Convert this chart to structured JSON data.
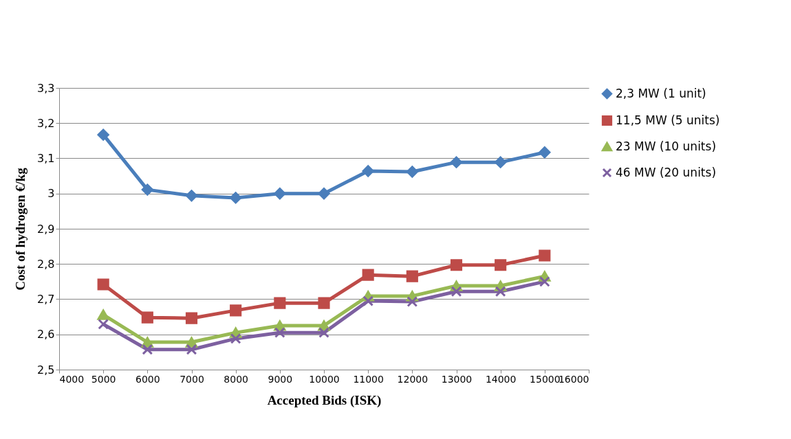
{
  "chart_data": {
    "type": "line",
    "xlabel": "Accepted Bids (ISK)",
    "ylabel": "Cost of hydrogen €/kg",
    "x": [
      5000,
      6000,
      7000,
      8000,
      9000,
      10000,
      11000,
      12000,
      13000,
      14000,
      15000
    ],
    "series": [
      {
        "name": "2,3 MW (1 unit)",
        "color": "#4a7ebb",
        "marker": "diamond",
        "values": [
          3.167,
          3.011,
          2.994,
          2.988,
          3.0,
          3.0,
          3.064,
          3.062,
          3.089,
          3.089,
          3.117
        ]
      },
      {
        "name": "11,5 MW (5 units)",
        "color": "#be4b48",
        "marker": "square",
        "values": [
          2.742,
          2.648,
          2.646,
          2.668,
          2.689,
          2.689,
          2.769,
          2.765,
          2.797,
          2.797,
          2.824
        ]
      },
      {
        "name": "23 MW (10 units)",
        "color": "#98b954",
        "marker": "triangle",
        "values": [
          2.656,
          2.578,
          2.578,
          2.605,
          2.625,
          2.625,
          2.709,
          2.709,
          2.738,
          2.738,
          2.765
        ]
      },
      {
        "name": "46 MW (20 units)",
        "color": "#7d60a0",
        "marker": "cross",
        "values": [
          2.629,
          2.557,
          2.557,
          2.588,
          2.605,
          2.605,
          2.695,
          2.693,
          2.722,
          2.722,
          2.75
        ]
      }
    ],
    "xlim": [
      4000,
      16000
    ],
    "xticks": [
      4000,
      5000,
      6000,
      7000,
      8000,
      9000,
      10000,
      11000,
      12000,
      13000,
      14000,
      15000,
      16000
    ],
    "ylim": [
      2.5,
      3.3
    ],
    "yticks": [
      {
        "value": 2.5,
        "label": "2,5"
      },
      {
        "value": 2.6,
        "label": "2,6"
      },
      {
        "value": 2.7,
        "label": "2,7"
      },
      {
        "value": 2.8,
        "label": "2,8"
      },
      {
        "value": 2.9,
        "label": "2,9"
      },
      {
        "value": 3,
        "label": "3"
      },
      {
        "value": 3.1,
        "label": "3,1"
      },
      {
        "value": 3.2,
        "label": "3,2"
      },
      {
        "value": 3.3,
        "label": "3,3"
      }
    ],
    "grid": "y",
    "legend": "right",
    "line_style": "solid"
  }
}
